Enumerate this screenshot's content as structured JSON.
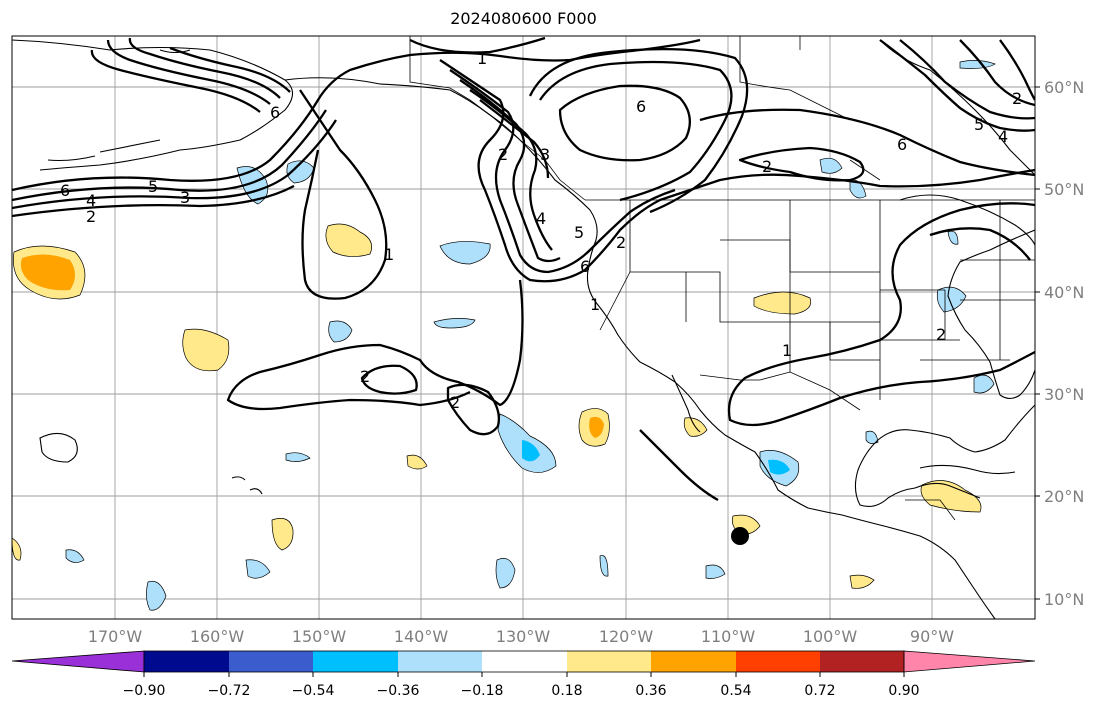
{
  "title": "2024080600 F000",
  "colors": {
    "neg_extreme": "#9a30d8",
    "neg_090": "#000a8f",
    "neg_072": "#3a5ccc",
    "neg_054": "#00bfff",
    "neg_036": "#aee0fb",
    "neutral": "#ffffff",
    "pos_018": "#ffe98a",
    "pos_036": "#ffa300",
    "pos_054": "#ff4000",
    "pos_072": "#b22222",
    "pos_extreme": "#ff85aa"
  },
  "lat_labels": [
    "60°N",
    "50°N",
    "40°N",
    "30°N",
    "20°N",
    "10°N"
  ],
  "lon_labels": [
    "170°W",
    "160°W",
    "150°W",
    "140°W",
    "130°W",
    "120°W",
    "110°W",
    "100°W",
    "90°W"
  ],
  "colorbar_ticks": [
    "−0.90",
    "−0.72",
    "−0.54",
    "−0.36",
    "−0.18",
    "0.18",
    "0.36",
    "0.54",
    "0.72",
    "0.90"
  ],
  "contour_labels": [
    "1",
    "6",
    "2",
    "3",
    "4",
    "5",
    "6",
    "2",
    "3",
    "1",
    "2",
    "4",
    "5",
    "6",
    "6",
    "2",
    "4",
    "5",
    "6",
    "1",
    "2",
    "2",
    "2",
    "1",
    "2"
  ],
  "marker": "storm-center-marker"
}
